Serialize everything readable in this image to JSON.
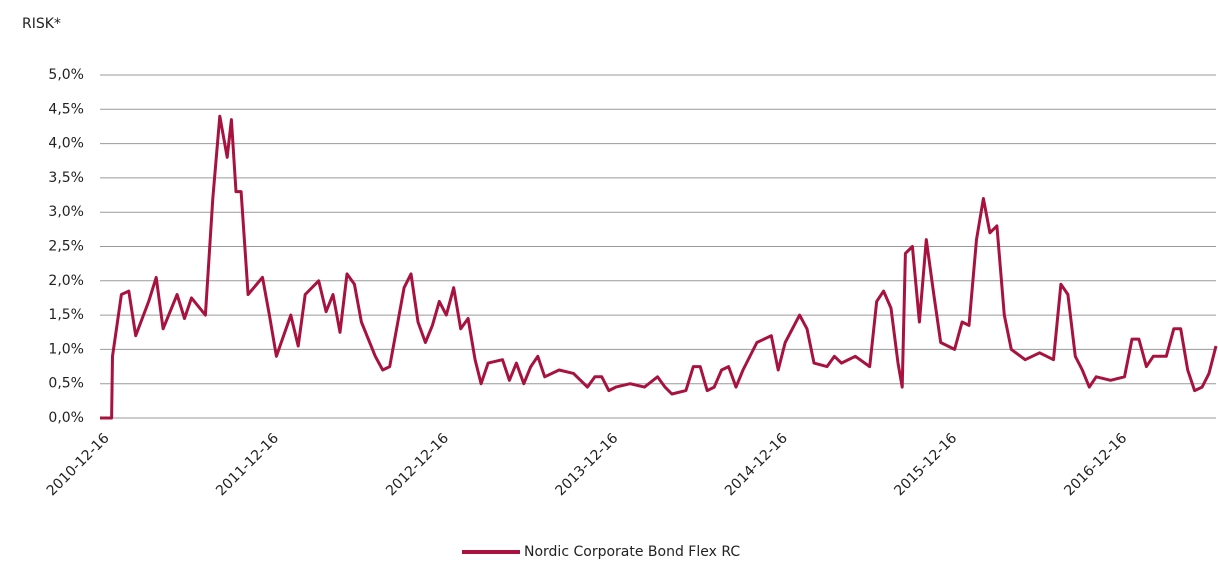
{
  "chart_data": {
    "type": "line",
    "title": "RISK*",
    "x": [
      "2010-12-01",
      "2010-12-26",
      "2010-12-28",
      "2011-01-16",
      "2011-02-01",
      "2011-02-16",
      "2011-03-16",
      "2011-04-01",
      "2011-04-16",
      "2011-05-16",
      "2011-06-01",
      "2011-06-16",
      "2011-07-16",
      "2011-08-01",
      "2011-08-16",
      "2011-09-01",
      "2011-09-10",
      "2011-09-20",
      "2011-10-01",
      "2011-10-16",
      "2011-11-16",
      "2011-12-01",
      "2011-12-16",
      "2012-01-16",
      "2012-02-01",
      "2012-02-16",
      "2012-03-16",
      "2012-04-01",
      "2012-04-16",
      "2012-05-01",
      "2012-05-16",
      "2012-06-01",
      "2012-06-16",
      "2012-07-16",
      "2012-08-01",
      "2012-08-16",
      "2012-09-16",
      "2012-10-01",
      "2012-10-16",
      "2012-11-01",
      "2012-11-16",
      "2012-12-01",
      "2012-12-16",
      "2013-01-01",
      "2013-01-16",
      "2013-02-01",
      "2013-02-16",
      "2013-03-01",
      "2013-03-16",
      "2013-04-16",
      "2013-05-01",
      "2013-05-16",
      "2013-06-01",
      "2013-06-16",
      "2013-07-01",
      "2013-07-16",
      "2013-08-16",
      "2013-09-16",
      "2013-10-16",
      "2013-11-01",
      "2013-11-16",
      "2013-12-01",
      "2013-12-16",
      "2014-01-16",
      "2014-02-16",
      "2014-03-16",
      "2014-04-01",
      "2014-04-16",
      "2014-05-16",
      "2014-06-01",
      "2014-06-16",
      "2014-07-01",
      "2014-07-16",
      "2014-08-01",
      "2014-08-16",
      "2014-09-01",
      "2014-09-16",
      "2014-10-16",
      "2014-11-16",
      "2014-12-01",
      "2014-12-16",
      "2015-01-16",
      "2015-02-01",
      "2015-02-16",
      "2015-03-16",
      "2015-04-01",
      "2015-04-16",
      "2015-05-16",
      "2015-06-16",
      "2015-07-01",
      "2015-07-16",
      "2015-08-01",
      "2015-08-16",
      "2015-08-25",
      "2015-09-01",
      "2015-09-16",
      "2015-10-01",
      "2015-10-16",
      "2015-11-01",
      "2015-11-16",
      "2015-12-16",
      "2016-01-01",
      "2016-01-16",
      "2016-02-01",
      "2016-02-16",
      "2016-03-01",
      "2016-03-16",
      "2016-04-01",
      "2016-04-16",
      "2016-05-16",
      "2016-06-16",
      "2016-07-16",
      "2016-08-01",
      "2016-08-16",
      "2016-09-01",
      "2016-09-16",
      "2016-10-01",
      "2016-10-16",
      "2016-11-16",
      "2016-12-16",
      "2017-01-01",
      "2017-01-16",
      "2017-02-01",
      "2017-02-16",
      "2017-03-16",
      "2017-04-01",
      "2017-04-16",
      "2017-05-01",
      "2017-05-16",
      "2017-06-01",
      "2017-06-16",
      "2017-07-01"
    ],
    "series": [
      {
        "name": "Nordic Corporate Bond Flex RC",
        "color": "#a8123e",
        "values": [
          0,
          0,
          0.9,
          1.8,
          1.85,
          1.2,
          1.7,
          2.05,
          1.3,
          1.8,
          1.45,
          1.75,
          1.5,
          3.2,
          4.4,
          3.8,
          4.35,
          3.3,
          3.3,
          1.8,
          2.05,
          1.5,
          0.9,
          1.5,
          1.05,
          1.8,
          2.0,
          1.55,
          1.8,
          1.25,
          2.1,
          1.95,
          1.4,
          0.9,
          0.7,
          0.75,
          1.9,
          2.1,
          1.4,
          1.1,
          1.35,
          1.7,
          1.5,
          1.9,
          1.3,
          1.45,
          0.85,
          0.5,
          0.8,
          0.85,
          0.55,
          0.8,
          0.5,
          0.75,
          0.9,
          0.6,
          0.7,
          0.65,
          0.45,
          0.6,
          0.6,
          0.4,
          0.45,
          0.5,
          0.45,
          0.6,
          0.45,
          0.35,
          0.4,
          0.75,
          0.75,
          0.4,
          0.45,
          0.7,
          0.75,
          0.45,
          0.7,
          1.1,
          1.2,
          0.7,
          1.1,
          1.5,
          1.3,
          0.8,
          0.75,
          0.9,
          0.8,
          0.9,
          0.75,
          1.7,
          1.85,
          1.6,
          0.8,
          0.45,
          2.4,
          2.5,
          1.4,
          2.6,
          1.8,
          1.1,
          1.0,
          1.4,
          1.35,
          2.6,
          3.2,
          2.7,
          2.8,
          1.5,
          1.0,
          0.85,
          0.95,
          0.85,
          1.95,
          1.8,
          0.9,
          0.7,
          0.45,
          0.6,
          0.55,
          0.6,
          1.15,
          1.15,
          0.75,
          0.9,
          0.9,
          1.3,
          1.3,
          0.7,
          0.4,
          0.45,
          0.65,
          1.05
        ]
      }
    ],
    "xlim": [
      "2010-12-01",
      "2017-07-01"
    ],
    "xticks": [
      "2010-12-16",
      "2011-12-16",
      "2012-12-16",
      "2013-12-16",
      "2014-12-16",
      "2015-12-16",
      "2016-12-16"
    ],
    "ylim": [
      0,
      5
    ],
    "yticks": [
      {
        "value": 0,
        "label": "0,0%"
      },
      {
        "value": 0.5,
        "label": "0,5%"
      },
      {
        "value": 1,
        "label": "1,0%"
      },
      {
        "value": 1.5,
        "label": "1,5%"
      },
      {
        "value": 2,
        "label": "2,0%"
      },
      {
        "value": 2.5,
        "label": "2,5%"
      },
      {
        "value": 3,
        "label": "3,0%"
      },
      {
        "value": 3.5,
        "label": "3,5%"
      },
      {
        "value": 4,
        "label": "4,0%"
      },
      {
        "value": 4.5,
        "label": "4,5%"
      },
      {
        "value": 5,
        "label": "5,0%"
      }
    ],
    "grid": true
  }
}
